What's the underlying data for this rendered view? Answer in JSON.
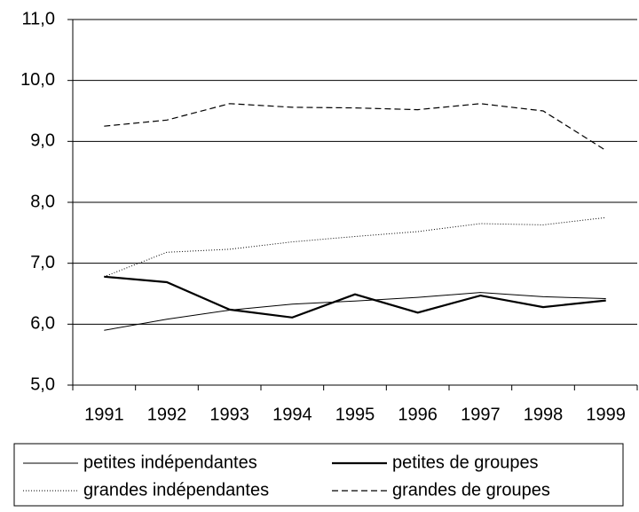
{
  "chart_data": {
    "type": "line",
    "categories": [
      "1991",
      "1992",
      "1993",
      "1994",
      "1995",
      "1996",
      "1997",
      "1998",
      "1999"
    ],
    "series": [
      {
        "name": "petites indépendantes",
        "color": "#000000",
        "width": 1,
        "dash": "none",
        "values": [
          5.9,
          6.08,
          6.23,
          6.33,
          6.38,
          6.44,
          6.52,
          6.45,
          6.42
        ]
      },
      {
        "name": "petites de groupes",
        "color": "#000000",
        "width": 2.2,
        "dash": "none",
        "values": [
          6.78,
          6.69,
          6.24,
          6.11,
          6.49,
          6.19,
          6.47,
          6.28,
          6.39
        ]
      },
      {
        "name": "grandes indépendantes",
        "color": "#000000",
        "width": 1,
        "dash": "1 2",
        "values": [
          6.78,
          7.18,
          7.23,
          7.35,
          7.44,
          7.52,
          7.65,
          7.63,
          7.75
        ]
      },
      {
        "name": "grandes de groupes",
        "color": "#000000",
        "width": 1.2,
        "dash": "7 4",
        "values": [
          9.25,
          9.35,
          9.62,
          9.56,
          9.55,
          9.52,
          9.62,
          9.5,
          8.85
        ]
      }
    ],
    "ylim": [
      5,
      11
    ],
    "yticks": [
      {
        "value": 5,
        "label": "5,0"
      },
      {
        "value": 6,
        "label": "6,0"
      },
      {
        "value": 7,
        "label": "7,0"
      },
      {
        "value": 8,
        "label": "8,0"
      },
      {
        "value": 9,
        "label": "9,0"
      },
      {
        "value": 10,
        "label": "10,0"
      },
      {
        "value": 11,
        "label": "11,0"
      }
    ],
    "grid": true,
    "legend": "bottom"
  }
}
